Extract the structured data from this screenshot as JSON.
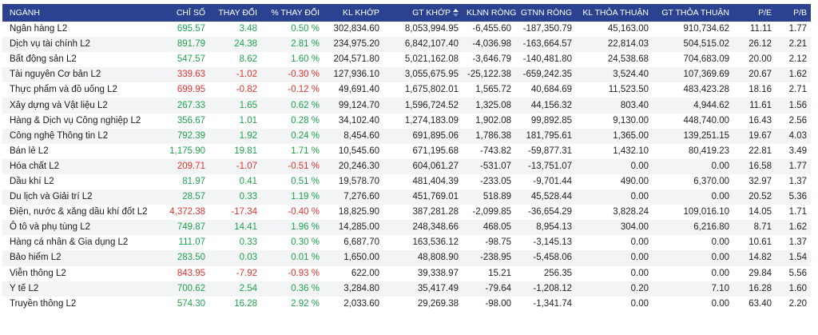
{
  "table": {
    "header": [
      "NGÀNH",
      "CHỈ SỐ",
      "THAY ĐỔI",
      "% THAY ĐỔI",
      "KL KHỚP",
      "GT KHỚP",
      "KLNN RÒNG",
      "GTNN RÒNG",
      "KL THỎA THUẬN",
      "GT THỎA THUẬN",
      "P/E",
      "P/B"
    ],
    "rows": [
      [
        "Ngân hàng L2",
        "695.57",
        "3.48",
        "0.50 %",
        "302,834.60",
        "8,053,994.95",
        "-6,455.60",
        "-187,350.79",
        "45,163.00",
        "910,734.62",
        "11.11",
        "1.77"
      ],
      [
        "Dịch vụ tài chính L2",
        "891.79",
        "24.38",
        "2.81 %",
        "234,975.20",
        "6,842,107.40",
        "-4,036.98",
        "-163,664.57",
        "22,814.03",
        "504,515.02",
        "26.12",
        "2.21"
      ],
      [
        "Bất động sản L2",
        "547.57",
        "8.62",
        "1.60 %",
        "204,571.80",
        "5,021,162.08",
        "-3,646.79",
        "-140,481.80",
        "24,538.68",
        "704,683.09",
        "20.00",
        "2.12"
      ],
      [
        "Tài nguyên Cơ bản L2",
        "339.63",
        "-1.02",
        "-0.30 %",
        "127,936.10",
        "3,055,675.95",
        "-25,122.38",
        "-659,242.35",
        "3,524.40",
        "107,369.69",
        "20.67",
        "1.62"
      ],
      [
        "Thực phẩm và đồ uống L2",
        "699.95",
        "-0.82",
        "-0.12 %",
        "49,691.40",
        "1,675,802.01",
        "1,565.72",
        "40,684.69",
        "11,523.50",
        "483,423.28",
        "18.16",
        "2.71"
      ],
      [
        "Xây dựng và Vật liệu L2",
        "267.33",
        "1.65",
        "0.62 %",
        "99,124.70",
        "1,596,724.52",
        "1,325.08",
        "44,156.32",
        "803.40",
        "4,944.62",
        "11.61",
        "1.56"
      ],
      [
        "Hàng & Dịch vụ Công nghiệp L2",
        "356.67",
        "1.01",
        "0.28 %",
        "34,102.40",
        "1,274,183.09",
        "1,902.08",
        "99,892.85",
        "9,130.00",
        "448,740.00",
        "16.43",
        "2.56"
      ],
      [
        "Công nghệ Thông tin L2",
        "792.39",
        "1.92",
        "0.24 %",
        "8,454.60",
        "691,895.06",
        "1,786.38",
        "181,795.61",
        "1,365.00",
        "139,251.15",
        "19.67",
        "4.03"
      ],
      [
        "Bán lẻ L2",
        "1,175.90",
        "19.81",
        "1.71 %",
        "10,545.60",
        "671,195.68",
        "-743.82",
        "-59,877.31",
        "1,432.10",
        "80,419.23",
        "22.81",
        "3.49"
      ],
      [
        "Hóa chất L2",
        "209.71",
        "-1.07",
        "-0.51 %",
        "20,246.30",
        "604,061.27",
        "-531.07",
        "-13,751.07",
        "0.00",
        "0.00",
        "16.58",
        "1.77"
      ],
      [
        "Dầu khí L2",
        "81.97",
        "0.41",
        "0.51 %",
        "19,578.70",
        "481,404.39",
        "-233.05",
        "-9,701.44",
        "490.00",
        "6,370.00",
        "32.97",
        "1.37"
      ],
      [
        "Du lịch và Giải trí L2",
        "28.57",
        "0.33",
        "1.19 %",
        "7,276.60",
        "451,769.01",
        "518.89",
        "45,528.44",
        "0.00",
        "0.00",
        "20.52",
        "5.36"
      ],
      [
        "Điện, nước & xăng dầu khí đốt L2",
        "4,372.38",
        "-17.34",
        "-0.40 %",
        "18,825.90",
        "387,281.28",
        "-2,099.85",
        "-36,654.29",
        "3,828.24",
        "109,016.10",
        "14.05",
        "1.71"
      ],
      [
        "Ô tô và phụ tùng L2",
        "749.87",
        "14.41",
        "1.96 %",
        "14,285.00",
        "248,348.66",
        "468.05",
        "8,954.13",
        "304.00",
        "6,216.80",
        "8.71",
        "1.62"
      ],
      [
        "Hàng cá nhân & Gia dụng L2",
        "111.07",
        "0.33",
        "0.30 %",
        "6,687.70",
        "163,536.12",
        "-98.75",
        "-3,145.13",
        "0.00",
        "0.00",
        "10.61",
        "1.37"
      ],
      [
        "Bảo hiểm L2",
        "283.50",
        "0.03",
        "0.01 %",
        "1,650.00",
        "48,808.90",
        "-238.95",
        "-5,458.06",
        "0.00",
        "0.00",
        "14.82",
        "1.54"
      ],
      [
        "Viễn thông L2",
        "843.95",
        "-7.92",
        "-0.93 %",
        "622.00",
        "39,338.97",
        "15.21",
        "256.35",
        "0.00",
        "0.00",
        "29.84",
        "5.56"
      ],
      [
        "Y tế L2",
        "700.62",
        "2.54",
        "0.36 %",
        "3,284.80",
        "35,417.49",
        "-79.64",
        "-1,208.12",
        "0.20",
        "7.10",
        "16.28",
        "1.60"
      ],
      [
        "Truyền thông L2",
        "574.30",
        "16.28",
        "2.92 %",
        "2,033.60",
        "29,269.38",
        "-98.00",
        "-1,341.74",
        "0.00",
        "0.00",
        "63.40",
        "2.20"
      ]
    ]
  }
}
